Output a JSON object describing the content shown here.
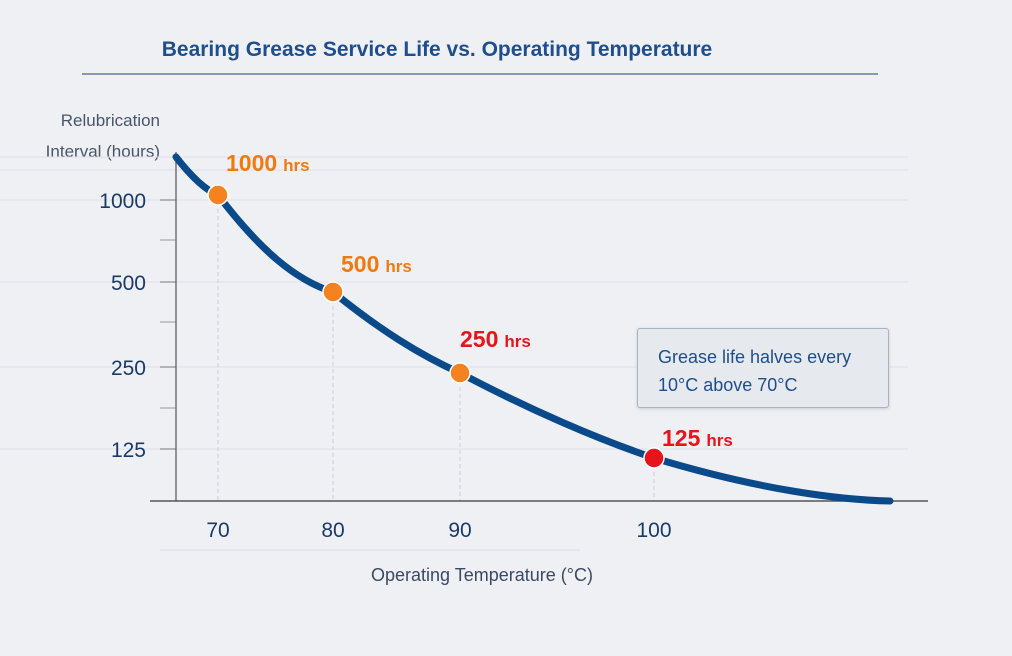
{
  "chart_data": {
    "type": "line",
    "title": "Bearing Grease Service Life vs. Operating Temperature",
    "xlabel": "Operating Temperature (°C)",
    "ylabel_lines": [
      "Relubrication",
      "Interval (hours)"
    ],
    "x_ticks": [
      "70",
      "80",
      "90",
      "100"
    ],
    "y_ticks": [
      "1000",
      "500",
      "250",
      "125"
    ],
    "x": [
      70,
      80,
      90,
      100
    ],
    "y": [
      1000,
      500,
      250,
      125
    ],
    "point_labels": [
      {
        "value": "1000",
        "unit": "hrs",
        "color": "#f07a10"
      },
      {
        "value": "500",
        "unit": "hrs",
        "color": "#f07a10"
      },
      {
        "value": "250",
        "unit": "hrs",
        "color": "#e8141c"
      },
      {
        "value": "125",
        "unit": "hrs",
        "color": "#e8141c"
      }
    ],
    "point_colors": [
      "#f58220",
      "#f58220",
      "#f58220",
      "#e8141c"
    ],
    "line_color": "#0b4a8a",
    "grid": true,
    "annotation": [
      "Grease life halves every",
      "10°C above 70°C"
    ]
  }
}
